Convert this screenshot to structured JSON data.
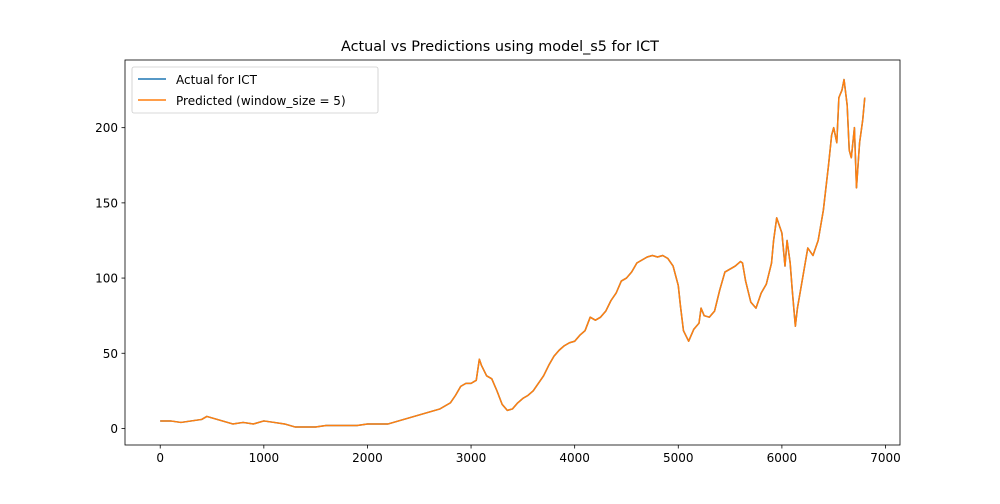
{
  "chart_data": {
    "type": "line",
    "title": "Actual vs Predictions using model_s5 for ICT",
    "xlabel": "",
    "ylabel": "",
    "xlim": [
      -340,
      7140
    ],
    "ylim": [
      -11,
      245
    ],
    "xticks": [
      0,
      1000,
      2000,
      3000,
      4000,
      5000,
      6000,
      7000
    ],
    "yticks": [
      0,
      50,
      100,
      150,
      200
    ],
    "grid": false,
    "legend_position": "top-left",
    "series": [
      {
        "name": "Actual for ICT",
        "color": "#1f77b4",
        "x": [
          0,
          100,
          200,
          300,
          400,
          450,
          500,
          600,
          700,
          800,
          900,
          1000,
          1100,
          1200,
          1300,
          1400,
          1500,
          1600,
          1700,
          1800,
          1900,
          2000,
          2100,
          2200,
          2300,
          2400,
          2500,
          2600,
          2700,
          2800,
          2850,
          2900,
          2950,
          3000,
          3050,
          3080,
          3100,
          3150,
          3200,
          3250,
          3300,
          3350,
          3400,
          3450,
          3500,
          3550,
          3600,
          3650,
          3700,
          3750,
          3800,
          3850,
          3900,
          3950,
          4000,
          4050,
          4100,
          4150,
          4200,
          4250,
          4300,
          4350,
          4400,
          4450,
          4500,
          4550,
          4600,
          4650,
          4700,
          4750,
          4800,
          4850,
          4900,
          4950,
          5000,
          5020,
          5050,
          5100,
          5150,
          5200,
          5220,
          5250,
          5300,
          5350,
          5400,
          5450,
          5500,
          5550,
          5600,
          5620,
          5650,
          5700,
          5750,
          5800,
          5850,
          5900,
          5920,
          5950,
          6000,
          6030,
          6050,
          6080,
          6100,
          6130,
          6150,
          6200,
          6250,
          6300,
          6350,
          6400,
          6450,
          6480,
          6500,
          6530,
          6550,
          6580,
          6600,
          6630,
          6650,
          6670,
          6700,
          6720,
          6750,
          6780,
          6800
        ],
        "y": [
          5,
          5,
          4,
          5,
          6,
          8,
          7,
          5,
          3,
          4,
          3,
          5,
          4,
          3,
          1,
          1,
          1,
          2,
          2,
          2,
          2,
          3,
          3,
          3,
          5,
          7,
          9,
          11,
          13,
          17,
          22,
          28,
          30,
          30,
          32,
          46,
          42,
          35,
          33,
          25,
          16,
          12,
          13,
          17,
          20,
          22,
          25,
          30,
          35,
          42,
          48,
          52,
          55,
          57,
          58,
          62,
          65,
          74,
          72,
          74,
          78,
          85,
          90,
          98,
          100,
          104,
          110,
          112,
          114,
          115,
          114,
          115,
          113,
          108,
          95,
          82,
          65,
          58,
          66,
          70,
          80,
          75,
          74,
          78,
          92,
          104,
          106,
          108,
          111,
          110,
          98,
          84,
          80,
          90,
          96,
          110,
          125,
          140,
          130,
          108,
          125,
          110,
          92,
          68,
          80,
          100,
          120,
          115,
          125,
          145,
          175,
          195,
          200,
          190,
          220,
          225,
          232,
          215,
          185,
          180,
          200,
          160,
          190,
          205,
          220
        ]
      },
      {
        "name": "Predicted (window_size = 5)",
        "color": "#ff7f0e",
        "x": [
          0,
          100,
          200,
          300,
          400,
          450,
          500,
          600,
          700,
          800,
          900,
          1000,
          1100,
          1200,
          1300,
          1400,
          1500,
          1600,
          1700,
          1800,
          1900,
          2000,
          2100,
          2200,
          2300,
          2400,
          2500,
          2600,
          2700,
          2800,
          2850,
          2900,
          2950,
          3000,
          3050,
          3080,
          3100,
          3150,
          3200,
          3250,
          3300,
          3350,
          3400,
          3450,
          3500,
          3550,
          3600,
          3650,
          3700,
          3750,
          3800,
          3850,
          3900,
          3950,
          4000,
          4050,
          4100,
          4150,
          4200,
          4250,
          4300,
          4350,
          4400,
          4450,
          4500,
          4550,
          4600,
          4650,
          4700,
          4750,
          4800,
          4850,
          4900,
          4950,
          5000,
          5020,
          5050,
          5100,
          5150,
          5200,
          5220,
          5250,
          5300,
          5350,
          5400,
          5450,
          5500,
          5550,
          5600,
          5620,
          5650,
          5700,
          5750,
          5800,
          5850,
          5900,
          5920,
          5950,
          6000,
          6030,
          6050,
          6080,
          6100,
          6130,
          6150,
          6200,
          6250,
          6300,
          6350,
          6400,
          6450,
          6480,
          6500,
          6530,
          6550,
          6580,
          6600,
          6630,
          6650,
          6670,
          6700,
          6720,
          6750,
          6780,
          6800
        ],
        "y": [
          5,
          5,
          4,
          5,
          6,
          8,
          7,
          5,
          3,
          4,
          3,
          5,
          4,
          3,
          1,
          1,
          1,
          2,
          2,
          2,
          2,
          3,
          3,
          3,
          5,
          7,
          9,
          11,
          13,
          17,
          22,
          28,
          30,
          30,
          32,
          46,
          42,
          35,
          33,
          25,
          16,
          12,
          13,
          17,
          20,
          22,
          25,
          30,
          35,
          42,
          48,
          52,
          55,
          57,
          58,
          62,
          65,
          74,
          72,
          74,
          78,
          85,
          90,
          98,
          100,
          104,
          110,
          112,
          114,
          115,
          114,
          115,
          113,
          108,
          95,
          82,
          65,
          58,
          66,
          70,
          80,
          75,
          74,
          78,
          92,
          104,
          106,
          108,
          111,
          110,
          98,
          84,
          80,
          90,
          96,
          110,
          125,
          140,
          130,
          108,
          125,
          110,
          92,
          68,
          80,
          100,
          120,
          115,
          125,
          145,
          175,
          195,
          200,
          190,
          220,
          225,
          232,
          215,
          185,
          180,
          200,
          160,
          190,
          205,
          220
        ]
      }
    ]
  }
}
